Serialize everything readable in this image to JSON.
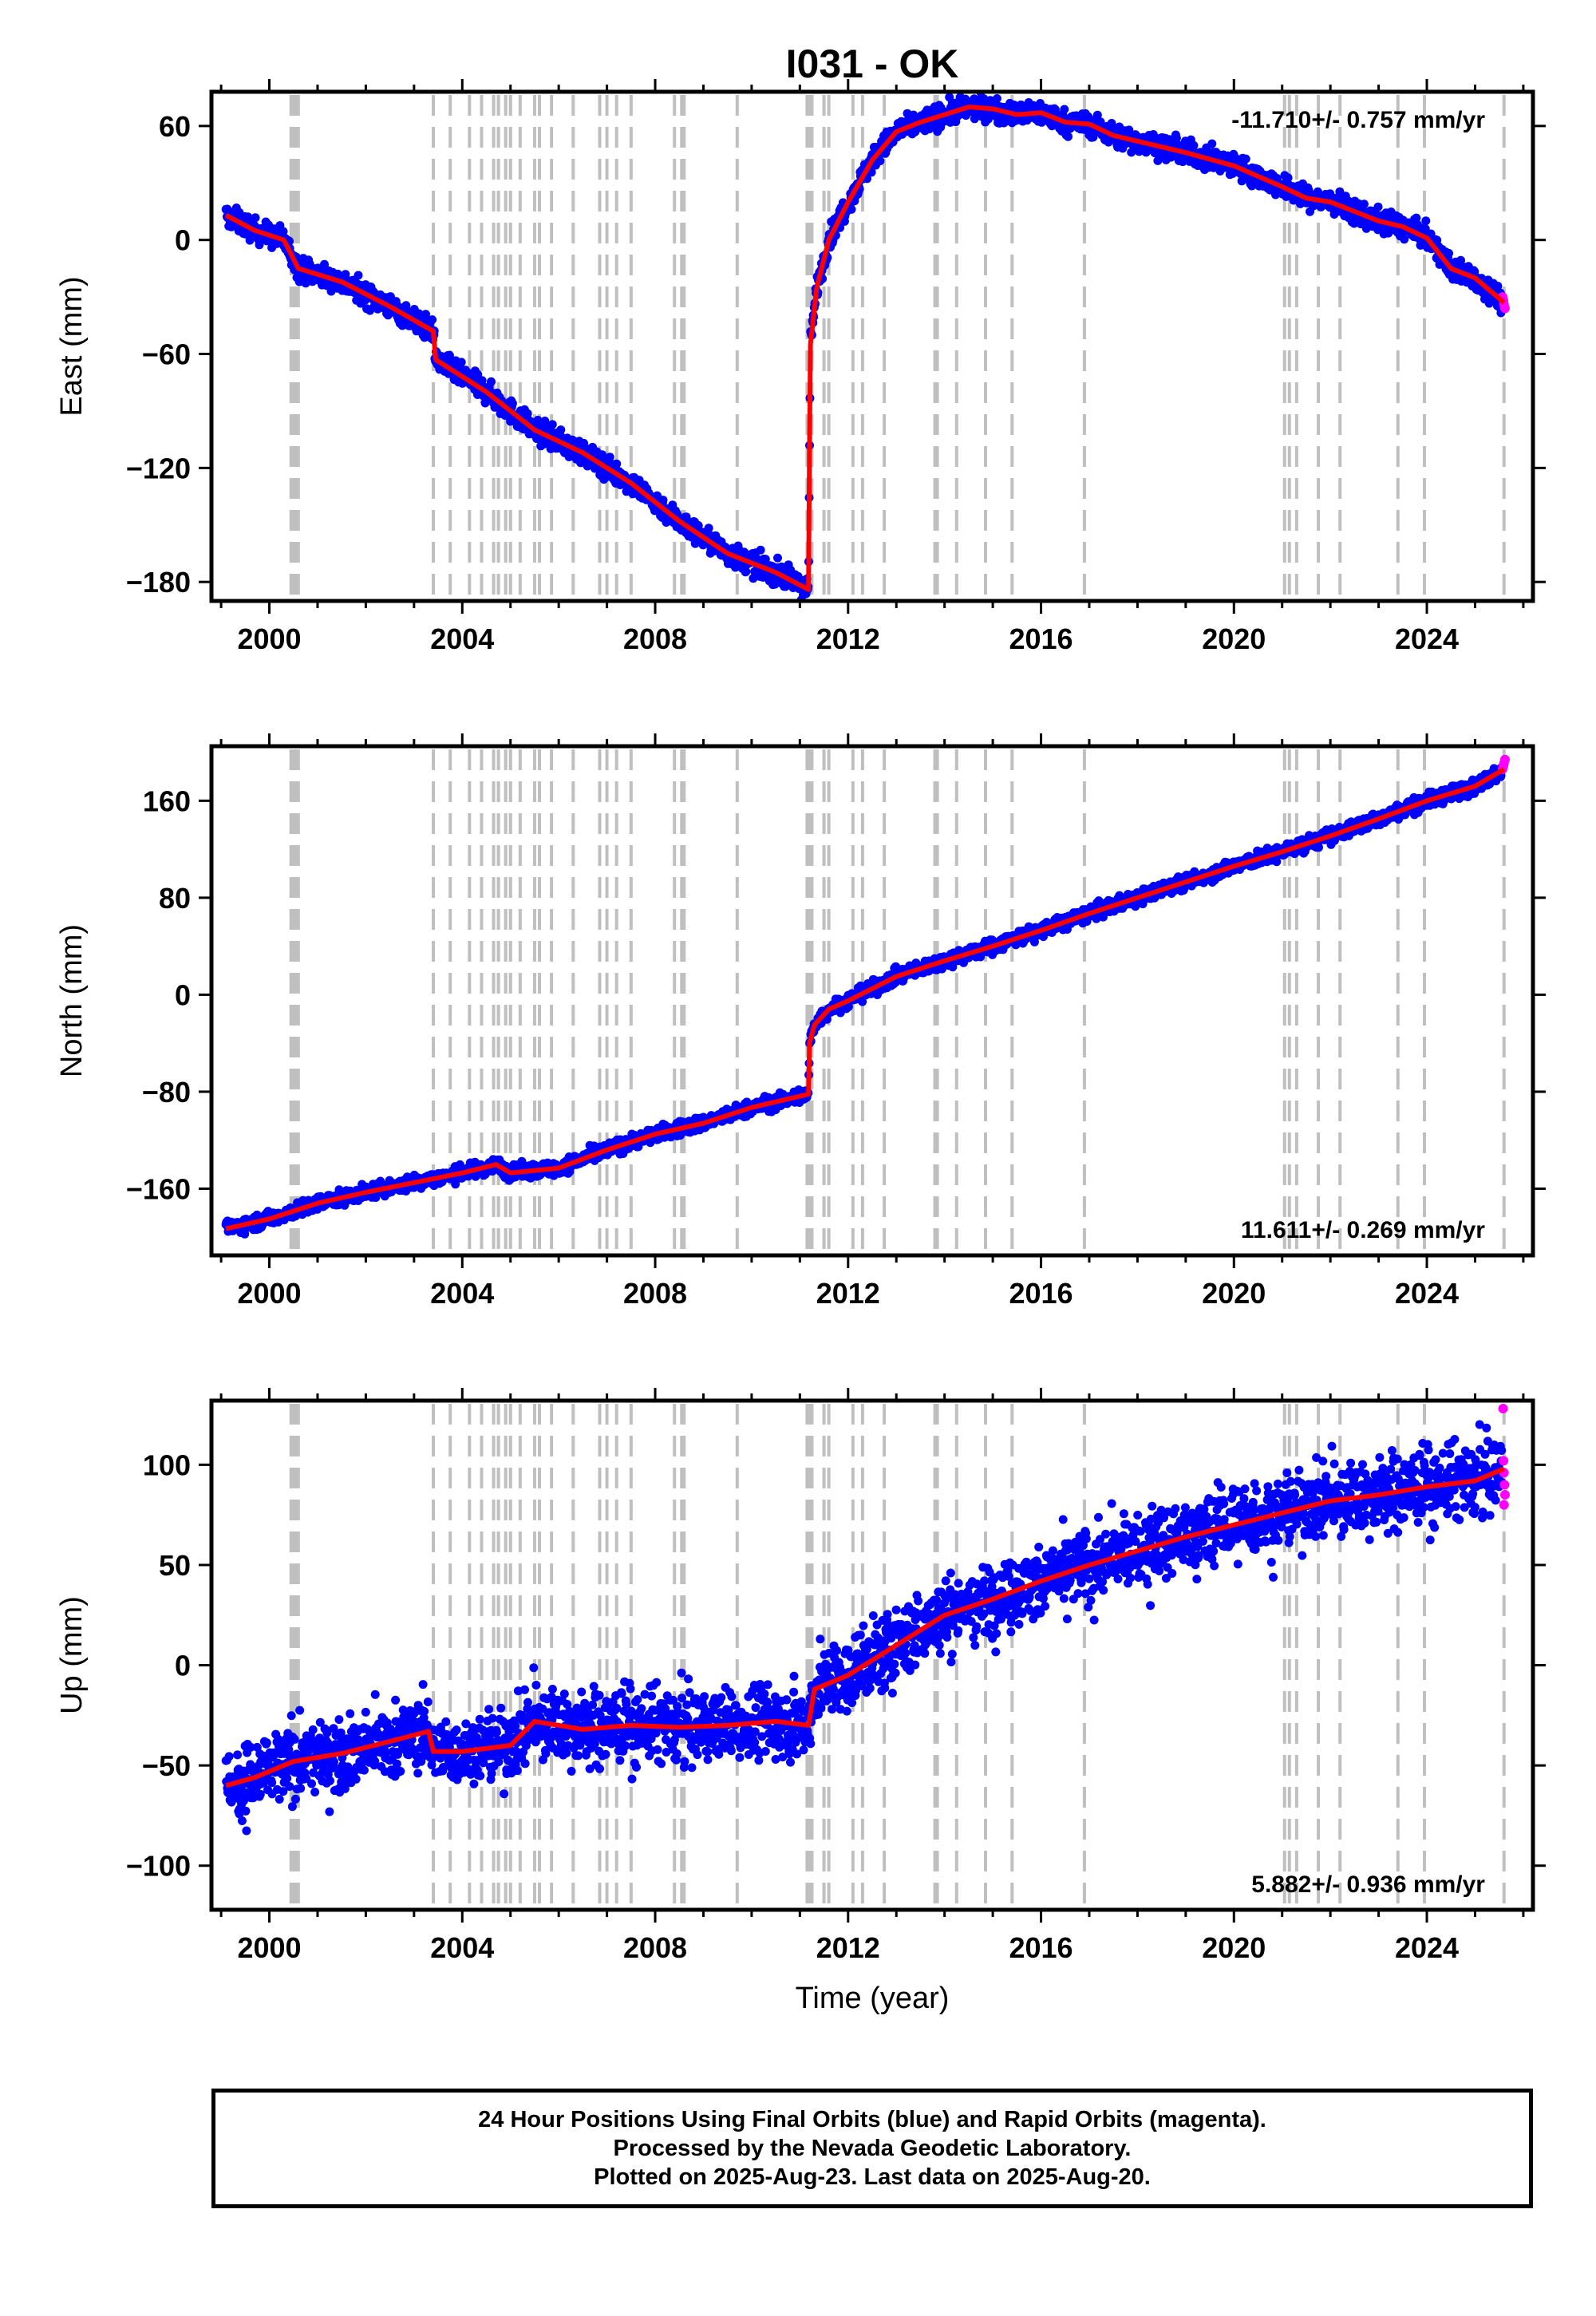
{
  "chart_data": {
    "type": "scatter",
    "title": "I031 - OK",
    "xlabel": "Time (year)",
    "xlim": [
      1998.8,
      2026.2
    ],
    "xticks": [
      2000,
      2004,
      2008,
      2012,
      2016,
      2020,
      2024
    ],
    "colors": {
      "final": "#0000ff",
      "rapid": "#ff00ff",
      "model": "#ff0000",
      "step": "#bfbfbf"
    },
    "step_lines": [
      2000.45,
      2000.5,
      2000.55,
      2000.6,
      2003.4,
      2003.75,
      2004.15,
      2004.4,
      2004.65,
      2004.75,
      2004.9,
      2005.0,
      2005.2,
      2005.5,
      2005.6,
      2005.85,
      2006.3,
      2006.85,
      2007.0,
      2007.2,
      2007.5,
      2008.4,
      2008.55,
      2008.6,
      2009.7,
      2011.15,
      2011.2,
      2011.25,
      2011.5,
      2011.6,
      2012.1,
      2012.3,
      2012.75,
      2013.8,
      2013.85,
      2014.25,
      2014.85,
      2015.4,
      2016.9,
      2021.05,
      2021.15,
      2021.3,
      2021.75,
      2022.2,
      2023.4,
      2023.95,
      2025.6
    ],
    "panels": [
      {
        "name": "east",
        "ylabel": "East (mm)",
        "ylim": [
          -190,
          78
        ],
        "yticks": [
          60,
          0,
          -60,
          -120,
          -180
        ],
        "rate_text": "-11.710+/- 0.757 mm/yr",
        "rate_position": "top-right",
        "noise": 3,
        "model": [
          [
            1999.1,
            13
          ],
          [
            1999.7,
            5
          ],
          [
            2000.3,
            0
          ],
          [
            2000.6,
            -15
          ],
          [
            2001.5,
            -22
          ],
          [
            2002.5,
            -35
          ],
          [
            2003.4,
            -48
          ],
          [
            2003.45,
            -63
          ],
          [
            2004.5,
            -80
          ],
          [
            2005.5,
            -100
          ],
          [
            2006.5,
            -112
          ],
          [
            2007.5,
            -128
          ],
          [
            2008.5,
            -148
          ],
          [
            2009.5,
            -165
          ],
          [
            2010.5,
            -175
          ],
          [
            2011.18,
            -184
          ],
          [
            2011.2,
            -110
          ],
          [
            2011.22,
            -55
          ],
          [
            2011.35,
            -25
          ],
          [
            2011.6,
            0
          ],
          [
            2012.0,
            20
          ],
          [
            2012.5,
            42
          ],
          [
            2013.0,
            57
          ],
          [
            2013.5,
            62
          ],
          [
            2014.0,
            66
          ],
          [
            2014.5,
            70
          ],
          [
            2015.0,
            69
          ],
          [
            2015.5,
            66
          ],
          [
            2016.0,
            67
          ],
          [
            2016.5,
            62
          ],
          [
            2017.0,
            61
          ],
          [
            2017.5,
            55
          ],
          [
            2018.0,
            52
          ],
          [
            2019.0,
            46
          ],
          [
            2020.0,
            39
          ],
          [
            2021.0,
            28
          ],
          [
            2021.5,
            22
          ],
          [
            2022.0,
            20
          ],
          [
            2022.5,
            15
          ],
          [
            2023.0,
            10
          ],
          [
            2023.5,
            7
          ],
          [
            2024.0,
            1
          ],
          [
            2024.5,
            -15
          ],
          [
            2025.0,
            -20
          ],
          [
            2025.6,
            -33
          ]
        ],
        "rapid": [
          [
            2025.57,
            -30
          ],
          [
            2025.59,
            -32
          ],
          [
            2025.6,
            -34
          ],
          [
            2025.62,
            -36
          ]
        ]
      },
      {
        "name": "north",
        "ylabel": "North (mm)",
        "ylim": [
          -215,
          205
        ],
        "yticks": [
          160,
          80,
          0,
          -80,
          -160
        ],
        "rate_text": "11.611+/- 0.269 mm/yr",
        "rate_position": "bottom-right",
        "noise": 3,
        "model": [
          [
            1999.1,
            -193
          ],
          [
            2000.0,
            -185
          ],
          [
            2001.0,
            -172
          ],
          [
            2002.0,
            -163
          ],
          [
            2003.0,
            -155
          ],
          [
            2004.0,
            -147
          ],
          [
            2004.7,
            -140
          ],
          [
            2005.0,
            -147
          ],
          [
            2006.0,
            -143
          ],
          [
            2007.0,
            -128
          ],
          [
            2008.0,
            -115
          ],
          [
            2009.0,
            -106
          ],
          [
            2010.0,
            -93
          ],
          [
            2011.18,
            -82
          ],
          [
            2011.2,
            -40
          ],
          [
            2011.3,
            -25
          ],
          [
            2011.6,
            -12
          ],
          [
            2012.0,
            -5
          ],
          [
            2013.0,
            15
          ],
          [
            2014.0,
            28
          ],
          [
            2015.0,
            40
          ],
          [
            2016.0,
            53
          ],
          [
            2017.0,
            67
          ],
          [
            2018.0,
            80
          ],
          [
            2019.0,
            93
          ],
          [
            2020.0,
            106
          ],
          [
            2021.0,
            118
          ],
          [
            2022.0,
            131
          ],
          [
            2023.0,
            145
          ],
          [
            2024.0,
            160
          ],
          [
            2025.0,
            172
          ],
          [
            2025.6,
            186
          ]
        ],
        "rapid": [
          [
            2025.57,
            186
          ],
          [
            2025.59,
            189
          ],
          [
            2025.6,
            191
          ],
          [
            2025.62,
            194
          ]
        ]
      },
      {
        "name": "up",
        "ylabel": "Up (mm)",
        "ylim": [
          -122,
          132
        ],
        "yticks": [
          100,
          50,
          0,
          -50,
          -100
        ],
        "rate_text": "5.882+/- 0.936 mm/yr",
        "rate_position": "bottom-right",
        "noise": 9,
        "model": [
          [
            1999.1,
            -60
          ],
          [
            1999.7,
            -56
          ],
          [
            2000.5,
            -48
          ],
          [
            2001.5,
            -44
          ],
          [
            2002.5,
            -38
          ],
          [
            2003.3,
            -33
          ],
          [
            2003.4,
            -43
          ],
          [
            2004.0,
            -43
          ],
          [
            2005.0,
            -40
          ],
          [
            2005.5,
            -28
          ],
          [
            2006.5,
            -32
          ],
          [
            2007.5,
            -30
          ],
          [
            2008.5,
            -31
          ],
          [
            2009.5,
            -30
          ],
          [
            2010.5,
            -28
          ],
          [
            2011.18,
            -30
          ],
          [
            2011.3,
            -12
          ],
          [
            2012.0,
            -5
          ],
          [
            2013.0,
            10
          ],
          [
            2014.0,
            25
          ],
          [
            2015.0,
            33
          ],
          [
            2016.0,
            42
          ],
          [
            2017.0,
            50
          ],
          [
            2018.0,
            57
          ],
          [
            2019.0,
            64
          ],
          [
            2020.0,
            70
          ],
          [
            2021.0,
            76
          ],
          [
            2022.0,
            82
          ],
          [
            2023.0,
            85
          ],
          [
            2024.0,
            89
          ],
          [
            2025.0,
            92
          ],
          [
            2025.6,
            98
          ]
        ],
        "rapid": [
          [
            2025.58,
            128
          ],
          [
            2025.59,
            102
          ],
          [
            2025.6,
            96
          ],
          [
            2025.61,
            90
          ],
          [
            2025.62,
            85
          ],
          [
            2025.6,
            80
          ]
        ]
      }
    ]
  },
  "footer": {
    "line1": "24 Hour Positions Using Final Orbits (blue) and Rapid Orbits (magenta).",
    "line2": "Processed by the Nevada Geodetic Laboratory.",
    "line3": "Plotted on 2025-Aug-23. Last data on 2025-Aug-20."
  }
}
